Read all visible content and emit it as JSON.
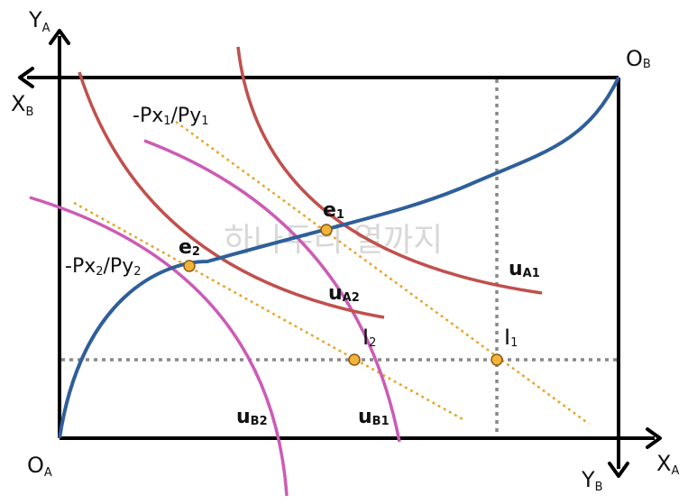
{
  "axes": {
    "ya": {
      "main": "Y",
      "sub": "A"
    },
    "xb": {
      "main": "X",
      "sub": "B"
    },
    "ob": {
      "main": "O",
      "sub": "B"
    },
    "oa": {
      "main": "O",
      "sub": "A"
    },
    "yb": {
      "main": "Y",
      "sub": "B"
    },
    "xa": {
      "main": "X",
      "sub": "A"
    }
  },
  "price_lines": {
    "p1": {
      "a": "-Px",
      "s1": "1",
      "b": "/Py",
      "s2": "1"
    },
    "p2": {
      "a": "-Px",
      "s1": "2",
      "b": "/Py",
      "s2": "2"
    }
  },
  "points": {
    "e1": {
      "main": "e",
      "sub": "1"
    },
    "e2": {
      "main": "e",
      "sub": "2"
    },
    "i1": {
      "main": "I",
      "sub": "1"
    },
    "i2": {
      "main": "I",
      "sub": "2"
    }
  },
  "curves": {
    "ua1": {
      "main": "u",
      "sub": "A1"
    },
    "ua2": {
      "main": "u",
      "sub": "A2"
    },
    "ub1": {
      "main": "u",
      "sub": "B1"
    },
    "ub2": {
      "main": "u",
      "sub": "B2"
    }
  },
  "watermark": "하나두리 열까지",
  "colors": {
    "contract_curve": "#2f5f9a",
    "indifference_a": "#c0504d",
    "indifference_b": "#cc5bb5",
    "price_line": "#e8a52a",
    "point_fill": "#f0b43a",
    "guide": "#888888",
    "frame": "#000000"
  }
}
